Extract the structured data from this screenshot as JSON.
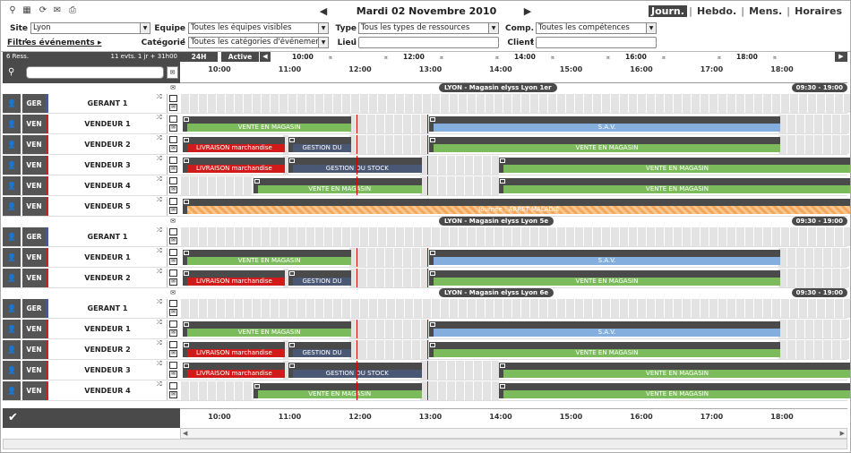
{
  "toolbar": {
    "icons": [
      "search-icon",
      "grid-icon",
      "refresh-icon",
      "email-icon",
      "print-icon"
    ],
    "date_title": "Mardi 02 Novembre 2010",
    "views": [
      {
        "label": "Journ.",
        "active": true
      },
      {
        "label": "Hebdo.",
        "active": false
      },
      {
        "label": "Mens.",
        "active": false
      },
      {
        "label": "Horaires",
        "active": false
      }
    ],
    "separator": "|"
  },
  "filters": {
    "site_label": "Site :",
    "site_value": "Lyon",
    "equipe_label": "Equipe :",
    "equipe_value": "Toutes les équipes visibles",
    "type_label": "Type :",
    "type_value": "Tous les types de ressources",
    "comp_label": "Comp. :",
    "comp_value": "Toutes les compétences",
    "filter_events_label": "Filtres événements",
    "categorie_label": "Catégorie :",
    "categorie_value": "Toutes les catégories d'événements",
    "lieu_label": "Lieu :",
    "lieu_value": "",
    "client_label": "Client :",
    "client_value": ""
  },
  "left_header": {
    "res_count": "6 Ress.",
    "evt_count": "11 evts. 1 jr + 31h00",
    "search_placeholder": ""
  },
  "grid_header": {
    "btn_24h": "24H",
    "btn_active": "Active",
    "big_times": [
      {
        "label": "10:00",
        "h": 10
      },
      {
        "label": "12:00",
        "h": 12
      },
      {
        "label": "14:00",
        "h": 14
      },
      {
        "label": "16:00",
        "h": 16
      },
      {
        "label": "18:00",
        "h": 18
      }
    ],
    "hours": [
      "10:00",
      "11:00",
      "12:00",
      "13:00",
      "14:00",
      "15:00",
      "16:00",
      "17:00",
      "18:00"
    ]
  },
  "groups": [
    {
      "title": "LYON - Magasin elyss Lyon 1er",
      "hours": "09:30 - 19:00",
      "rows": [
        {
          "type": "GER",
          "type_color": "#4455aa",
          "name": "GERANT 1",
          "events": [],
          "closed": []
        },
        {
          "type": "VEN",
          "type_color": "#cc2222",
          "name": "VENDEUR 1",
          "events": [
            {
              "s": 9.5,
              "e": 11.9,
              "label": "VENTE EN MAGASIN",
              "c": "green"
            },
            {
              "s": 13.0,
              "e": 18.0,
              "label": "S.A.V.",
              "c": "blue"
            }
          ]
        },
        {
          "type": "VEN",
          "type_color": "#cc2222",
          "name": "VENDEUR 2",
          "events": [
            {
              "s": 9.5,
              "e": 10.95,
              "label": "LIVRAISON marchandise",
              "c": "red"
            },
            {
              "s": 11.0,
              "e": 11.9,
              "label": "GESTION DU",
              "c": "slate"
            },
            {
              "s": 13.0,
              "e": 18.0,
              "label": "VENTE EN MAGASIN",
              "c": "green"
            }
          ]
        },
        {
          "type": "VEN",
          "type_color": "#cc2222",
          "name": "VENDEUR 3",
          "events": [
            {
              "s": 9.5,
              "e": 10.95,
              "label": "LIVRAISON marchandise",
              "c": "red"
            },
            {
              "s": 11.0,
              "e": 12.9,
              "label": "GESTION DU STOCK",
              "c": "slate"
            },
            {
              "s": 14.0,
              "e": 19.0,
              "label": "VENTE EN MAGASIN",
              "c": "green"
            }
          ]
        },
        {
          "type": "VEN",
          "type_color": "#cc2222",
          "name": "VENDEUR 4",
          "events": [
            {
              "s": 10.5,
              "e": 12.9,
              "label": "VENTE EN MAGASIN",
              "c": "green"
            },
            {
              "s": 14.0,
              "e": 19.0,
              "label": "VENTE EN MAGASIN",
              "c": "green"
            }
          ]
        },
        {
          "type": "VEN",
          "type_color": "#cc2222",
          "name": "VENDEUR 5",
          "events": [
            {
              "s": 9.5,
              "e": 19.0,
              "label": "Journée : ARRÊT MALADIE",
              "c": "hatch"
            }
          ]
        }
      ]
    },
    {
      "title": "LYON - Magasin elyss Lyon 5e",
      "hours": "09:30 - 19:00",
      "rows": [
        {
          "type": "GER",
          "type_color": "#4455aa",
          "name": "GERANT 1",
          "events": []
        },
        {
          "type": "VEN",
          "type_color": "#cc2222",
          "name": "VENDEUR 1",
          "events": [
            {
              "s": 9.5,
              "e": 11.9,
              "label": "VENTE EN MAGASIN",
              "c": "green"
            },
            {
              "s": 13.0,
              "e": 18.0,
              "label": "S.A.V.",
              "c": "blue"
            }
          ]
        },
        {
          "type": "VEN",
          "type_color": "#cc2222",
          "name": "VENDEUR 2",
          "events": [
            {
              "s": 9.5,
              "e": 10.95,
              "label": "LIVRAISON marchandise",
              "c": "red"
            },
            {
              "s": 11.0,
              "e": 11.9,
              "label": "GESTION DU",
              "c": "slate"
            },
            {
              "s": 13.0,
              "e": 18.0,
              "label": "VENTE EN MAGASIN",
              "c": "green"
            }
          ]
        }
      ]
    },
    {
      "title": "LYON - Magasin elyss Lyon 6e",
      "hours": "09:30 - 19:00",
      "rows": [
        {
          "type": "GER",
          "type_color": "#4455aa",
          "name": "GERANT 1",
          "events": []
        },
        {
          "type": "VEN",
          "type_color": "#cc2222",
          "name": "VENDEUR 1",
          "events": [
            {
              "s": 9.5,
              "e": 11.9,
              "label": "VENTE EN MAGASIN",
              "c": "green"
            },
            {
              "s": 13.0,
              "e": 18.0,
              "label": "S.A.V.",
              "c": "blue"
            }
          ]
        },
        {
          "type": "VEN",
          "type_color": "#cc2222",
          "name": "VENDEUR 2",
          "events": [
            {
              "s": 9.5,
              "e": 10.95,
              "label": "LIVRAISON marchandise",
              "c": "red"
            },
            {
              "s": 11.0,
              "e": 11.9,
              "label": "GESTION DU",
              "c": "slate"
            },
            {
              "s": 13.0,
              "e": 18.0,
              "label": "VENTE EN MAGASIN",
              "c": "green"
            }
          ]
        },
        {
          "type": "VEN",
          "type_color": "#cc2222",
          "name": "VENDEUR 3",
          "events": [
            {
              "s": 9.5,
              "e": 10.95,
              "label": "LIVRAISON marchandise",
              "c": "red"
            },
            {
              "s": 11.0,
              "e": 12.9,
              "label": "GESTION DU STOCK",
              "c": "slate"
            },
            {
              "s": 14.0,
              "e": 19.0,
              "label": "VENTE EN MAGASIN",
              "c": "green"
            }
          ]
        },
        {
          "type": "VEN",
          "type_color": "#cc2222",
          "name": "VENDEUR 4",
          "events": [
            {
              "s": 10.5,
              "e": 12.9,
              "label": "VENTE EN MAGASIN",
              "c": "green"
            },
            {
              "s": 14.0,
              "e": 19.0,
              "label": "VENTE EN MAGASIN",
              "c": "green"
            }
          ]
        }
      ]
    }
  ],
  "colors": {
    "header_bg": "#4a4a4a",
    "green": "#7cbb5b",
    "blue": "#84aede",
    "red": "#d11a1a",
    "slate": "#4b5875"
  }
}
